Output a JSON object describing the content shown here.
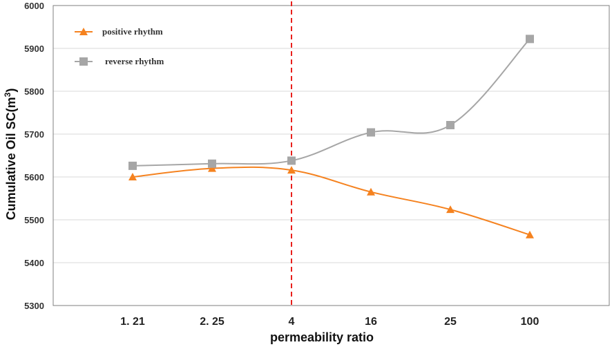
{
  "chart_data": {
    "type": "line",
    "categories": [
      "1. 21",
      "2. 25",
      "4",
      "16",
      "25",
      "100"
    ],
    "series": [
      {
        "name": "positive rhythm",
        "marker": "triangle",
        "color": "#f5821f",
        "values": [
          5600,
          5620,
          5616,
          5565,
          5524,
          5465
        ]
      },
      {
        "name": "reverse rhythm",
        "marker": "square",
        "color": "#a6a6a6",
        "values": [
          5626,
          5631,
          5638,
          5704,
          5721,
          5922
        ]
      }
    ],
    "ylim": [
      5300,
      6000
    ],
    "yticks": [
      "5300",
      "5400",
      "5500",
      "5600",
      "5700",
      "5800",
      "5900",
      "6000"
    ],
    "xlabel": "permeability ratio",
    "ylabel_main": "Cumulative Oil SC(m",
    "ylabel_sup": "3",
    "ylabel_close": ")",
    "grid": true,
    "legend_position": "top-left",
    "reference_line": {
      "category": "4",
      "color": "#e8201c",
      "style": "dashed"
    }
  }
}
